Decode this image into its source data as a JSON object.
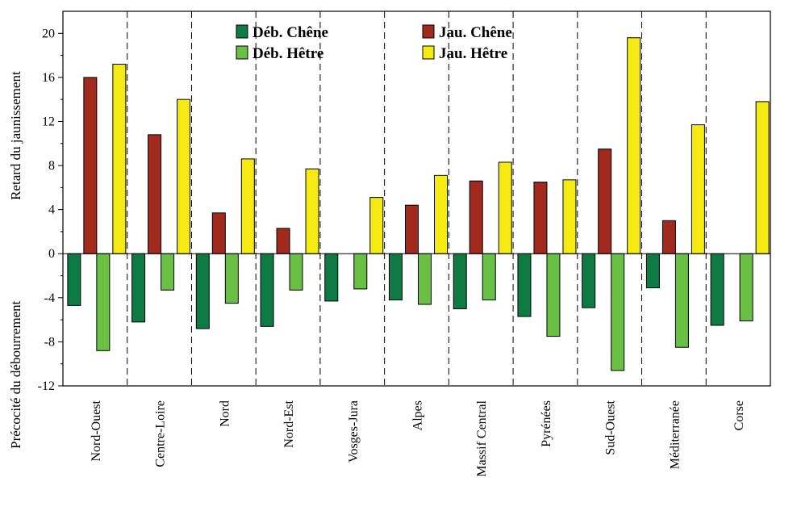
{
  "chart_data": {
    "type": "bar",
    "ylabel_top": "Retard du jaunissement",
    "ylabel_bottom": "Précocité du débourrement",
    "ylim": [
      -12,
      22
    ],
    "yticks": [
      -12,
      -8,
      -4,
      0,
      4,
      8,
      12,
      16,
      20
    ],
    "grid": false,
    "legend_position": "top-center",
    "categories": [
      "Nord-Ouest",
      "Centre-Loire",
      "Nord",
      "Nord-Est",
      "Vosges-Jura",
      "Alpes",
      "Massif Central",
      "Pyrénées",
      "Sud-Ouest",
      "Méditerranée",
      "Corse"
    ],
    "series": [
      {
        "name": "Déb. Chêne",
        "color": "#0e7a44",
        "values": [
          -4.7,
          -6.2,
          -6.8,
          -6.6,
          -4.3,
          -4.2,
          -5.0,
          -5.7,
          -4.9,
          -3.1,
          -6.5
        ]
      },
      {
        "name": "Jau. Chêne",
        "color": "#a02a1e",
        "values": [
          16.0,
          10.8,
          3.7,
          2.3,
          null,
          4.4,
          6.6,
          6.5,
          9.5,
          3.0,
          null
        ]
      },
      {
        "name": "Déb. Hêtre",
        "color": "#6abf45",
        "values": [
          -8.8,
          -3.3,
          -4.5,
          -3.3,
          -3.2,
          -4.6,
          -4.2,
          -7.5,
          -10.6,
          -8.5,
          -6.1
        ]
      },
      {
        "name": "Jau. Hêtre",
        "color": "#f5ea14",
        "values": [
          17.2,
          14.0,
          8.6,
          7.7,
          5.1,
          7.1,
          8.3,
          6.7,
          19.6,
          11.7,
          13.8
        ]
      }
    ]
  }
}
